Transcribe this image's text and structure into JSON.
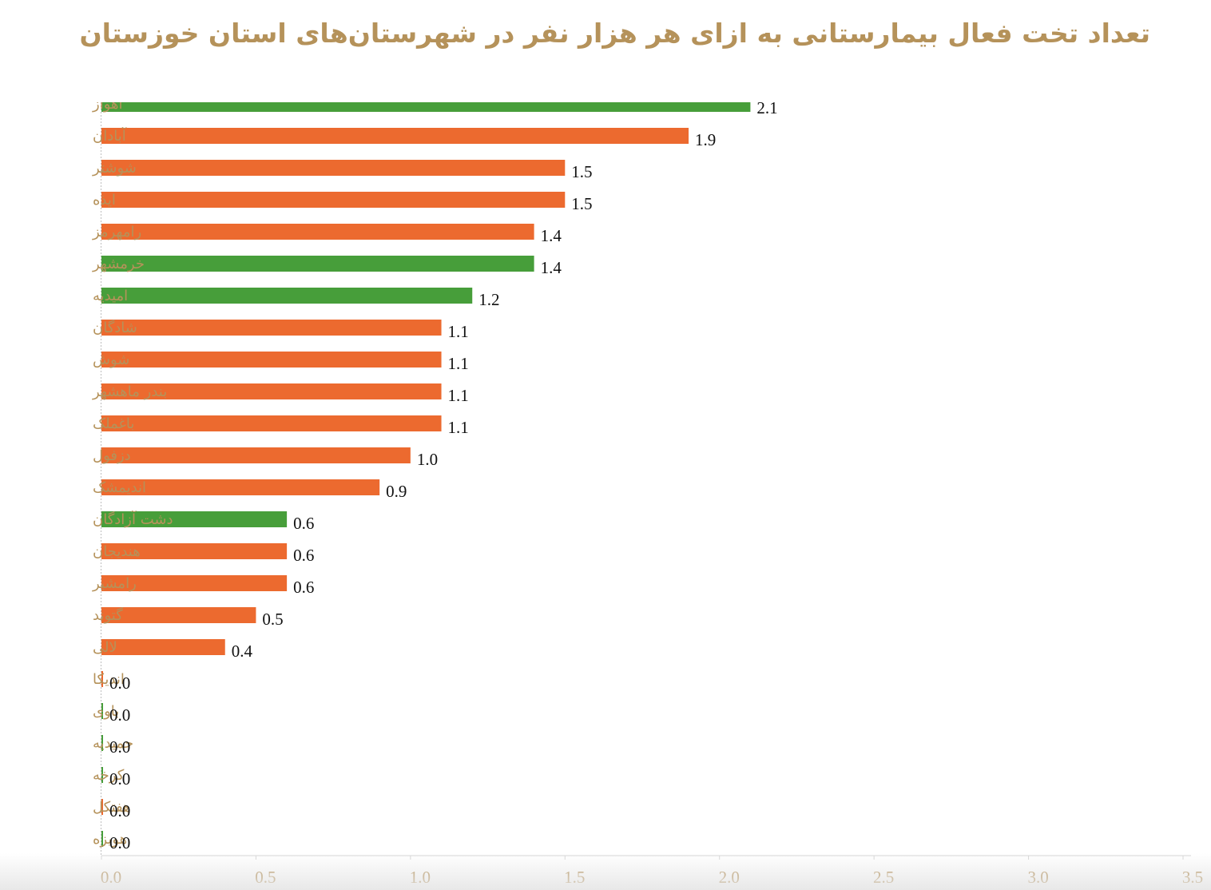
{
  "title": "تعداد تخت فعال بیمارستانی به ازای هر هزار نفر در شهرستان‌های استان خوزستان",
  "colors": {
    "orange": "#ec6a2f",
    "green": "#479e3a",
    "label": "#b5925a",
    "axis": "#d6d6d6"
  },
  "chart_data": {
    "type": "bar",
    "orientation": "horizontal",
    "title": "تعداد تخت فعال بیمارستانی به ازای هر هزار نفر در شهرستان‌های استان خوزستان",
    "xlim": [
      0,
      3.5
    ],
    "xticks": [
      "0.0",
      "0.5",
      "1.0",
      "1.5",
      "2.0",
      "2.5",
      "3.0",
      "3.5"
    ],
    "grid": false,
    "categories": [
      "اهواز",
      "آبادان",
      "شوشتر",
      "ایذه",
      "رامهرمز",
      "خرمشهر",
      "امیدیه",
      "شادگان",
      "شوش",
      "بندر ماهشهر",
      "باغملک",
      "دزفول",
      "اندیمشک",
      "دشت آزادگان",
      "هندیجان",
      "رامشیر",
      "گتوند",
      "لالی",
      "اندیکا",
      "باوی",
      "حمیدیه",
      "کرخه",
      "هفتکل",
      "هویزه"
    ],
    "values": [
      2.1,
      1.9,
      1.5,
      1.5,
      1.4,
      1.4,
      1.2,
      1.1,
      1.1,
      1.1,
      1.1,
      1.0,
      0.9,
      0.6,
      0.6,
      0.6,
      0.5,
      0.4,
      0.0,
      0.0,
      0.0,
      0.0,
      0.0,
      0.0
    ],
    "value_labels": [
      "2.1",
      "1.9",
      "1.5",
      "1.5",
      "1.4",
      "1.4",
      "1.2",
      "1.1",
      "1.1",
      "1.1",
      "1.1",
      "1.0",
      "0.9",
      "0.6",
      "0.6",
      "0.6",
      "0.5",
      "0.4",
      "0.0",
      "0.0",
      "0.0",
      "0.0",
      "0.0",
      "0.0"
    ],
    "bar_colors": [
      "green",
      "orange",
      "orange",
      "orange",
      "orange",
      "green",
      "green",
      "orange",
      "orange",
      "orange",
      "orange",
      "orange",
      "orange",
      "green",
      "orange",
      "orange",
      "orange",
      "orange",
      "orange",
      "green",
      "green",
      "green",
      "orange",
      "green"
    ]
  }
}
